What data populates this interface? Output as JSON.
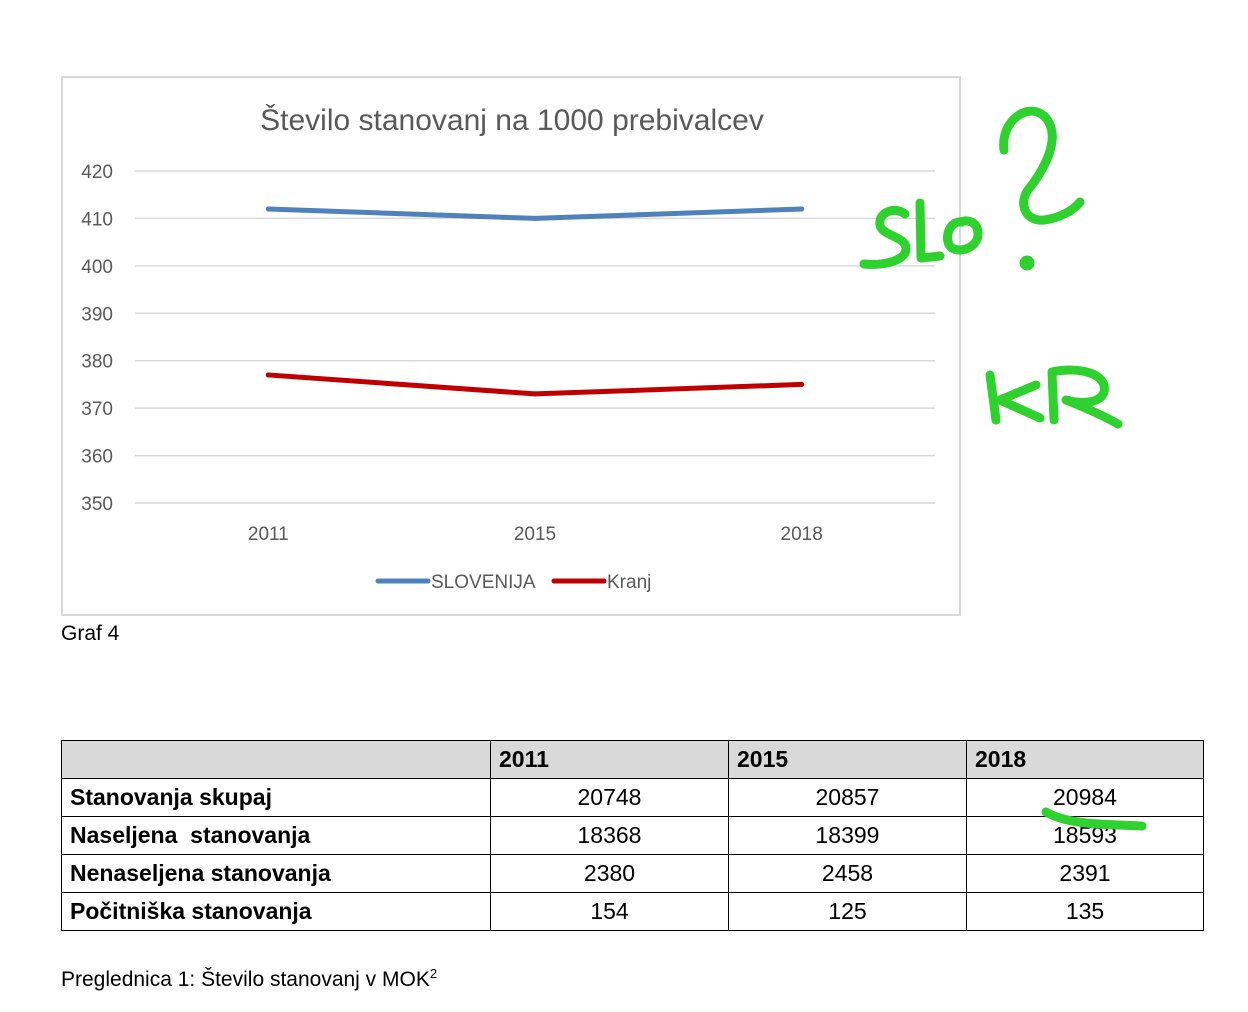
{
  "chart_data": {
    "type": "line",
    "title": "Število stanovanj na 1000 prebivalcev",
    "categories": [
      "2011",
      "2015",
      "2018"
    ],
    "series": [
      {
        "name": "SLOVENIJA",
        "values": [
          412,
          410,
          412
        ],
        "color": "#4f81bd"
      },
      {
        "name": "Kranj",
        "values": [
          377,
          373,
          375
        ],
        "color": "#c00000"
      }
    ],
    "ylim": [
      350,
      420
    ],
    "yticks": [
      "420",
      "410",
      "400",
      "390",
      "380",
      "370",
      "360",
      "350"
    ],
    "grid": true,
    "legend": "bottom",
    "xlabel": "",
    "ylabel": ""
  },
  "graf_caption": "Graf 4",
  "table": {
    "headers": [
      "",
      "2011",
      "2015",
      "2018"
    ],
    "rows": [
      {
        "label": "Stanovanja skupaj",
        "values": [
          "20748",
          "20857",
          "20984"
        ]
      },
      {
        "label": "Naseljena  stanovanja",
        "values": [
          "18368",
          "18399",
          "18593"
        ]
      },
      {
        "label": "Nenaseljena stanovanja",
        "values": [
          "2380",
          "2458",
          "2391"
        ]
      },
      {
        "label": "Počitniška stanovanja",
        "values": [
          "154",
          "125",
          "135"
        ]
      }
    ]
  },
  "table_caption": {
    "text": "Preglednica 1: Število stanovanj v MOK",
    "footnote": "2"
  },
  "handwriting": {
    "color": "#2ed12e",
    "notes": [
      "SLO",
      "?",
      "KR"
    ]
  }
}
